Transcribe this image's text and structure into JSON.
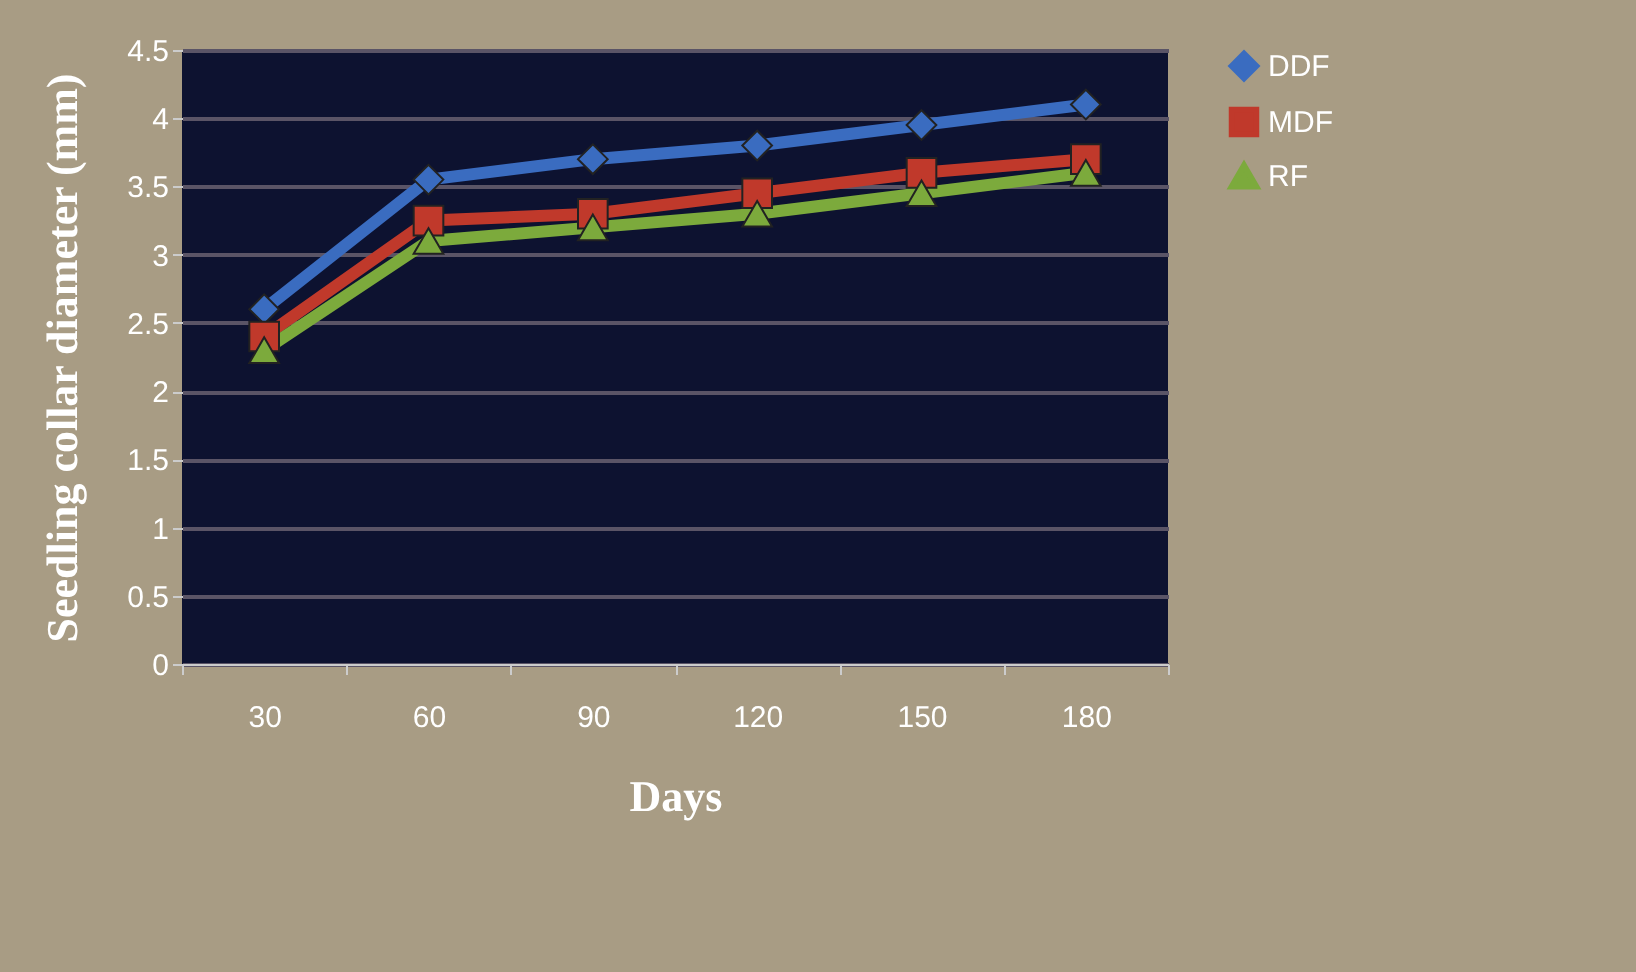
{
  "chart_data": {
    "type": "line",
    "xlabel": "Days",
    "ylabel": "Seedling collar diameter (mm)",
    "categories": [
      "30",
      "60",
      "90",
      "120",
      "150",
      "180"
    ],
    "series": [
      {
        "name": "DDF",
        "color": "#3a6cc0",
        "marker": "diamond",
        "values": [
          2.6,
          3.55,
          3.7,
          3.8,
          3.95,
          4.1
        ]
      },
      {
        "name": "MDF",
        "color": "#c0392b",
        "marker": "square",
        "values": [
          2.4,
          3.25,
          3.3,
          3.45,
          3.6,
          3.7
        ]
      },
      {
        "name": "RF",
        "color": "#7caa3c",
        "marker": "triangle",
        "values": [
          2.3,
          3.1,
          3.2,
          3.3,
          3.45,
          3.6
        ]
      }
    ],
    "ylim": [
      0,
      4.5
    ],
    "yticks": [
      0,
      0.5,
      1,
      1.5,
      2,
      2.5,
      3,
      3.5,
      4,
      4.5
    ],
    "grid": "y",
    "legend": "right"
  }
}
